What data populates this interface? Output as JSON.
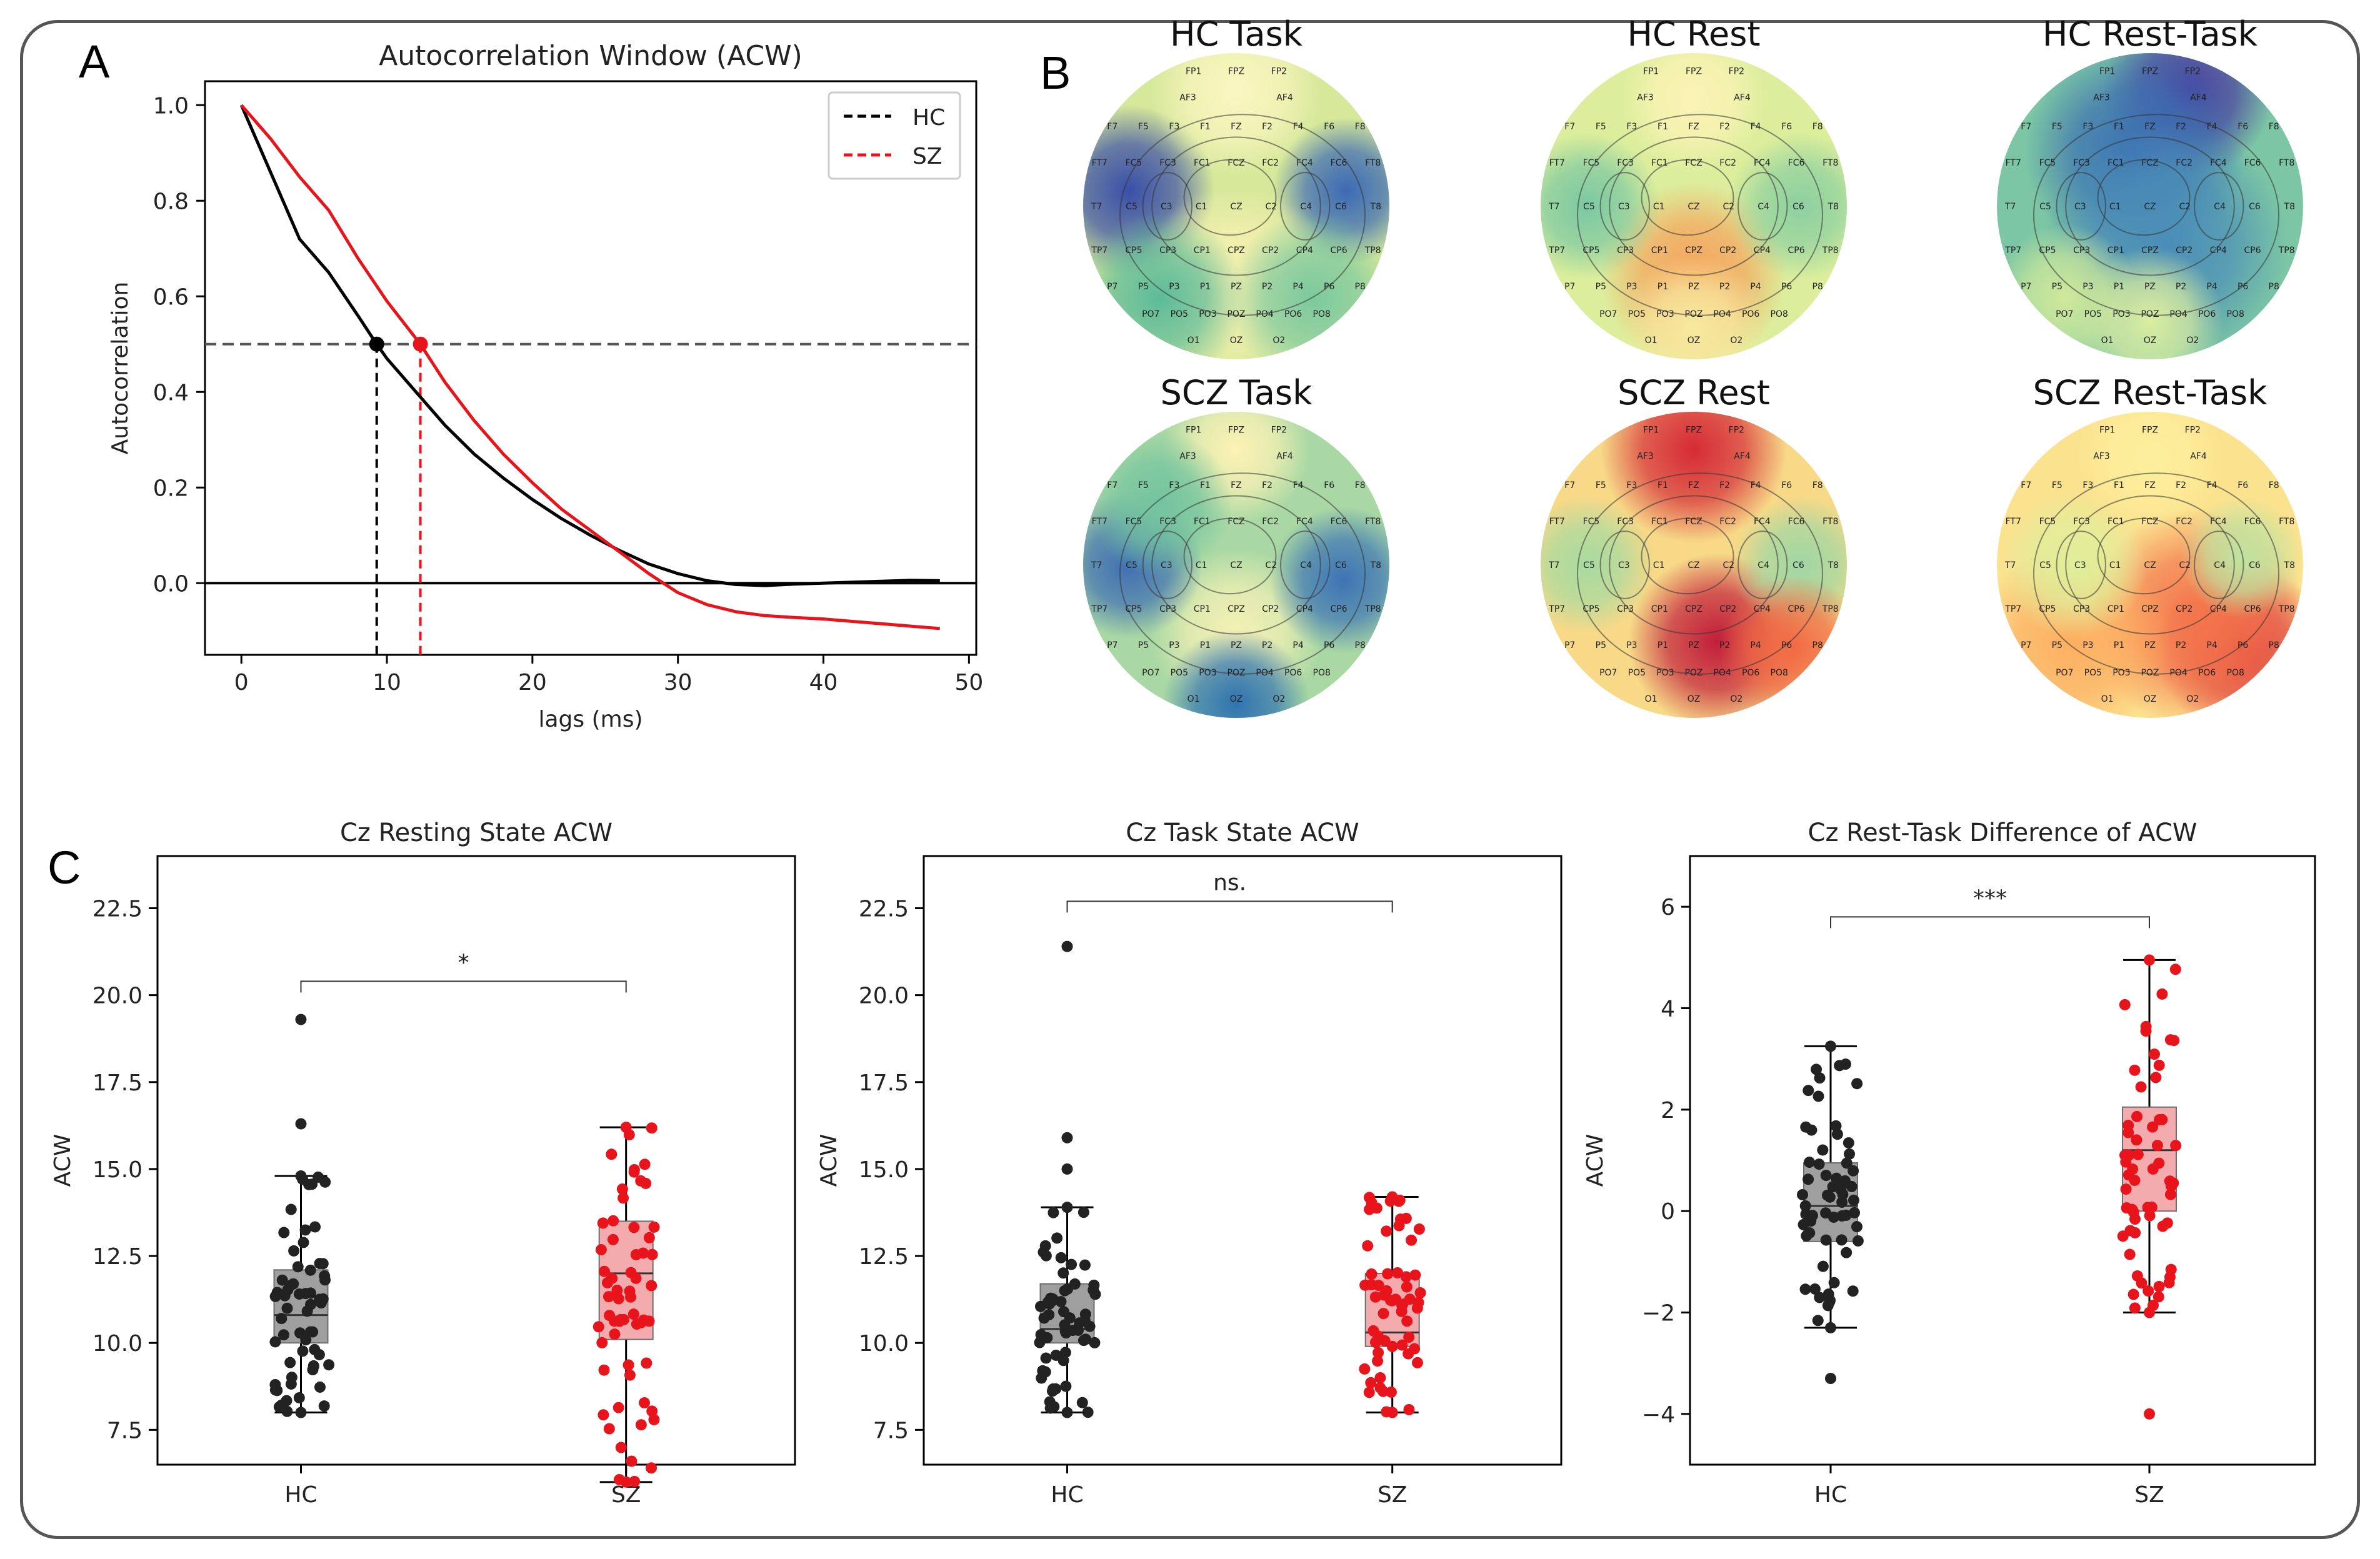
{
  "panel_labels": {
    "a": "A",
    "b": "B",
    "c": "C"
  },
  "colors": {
    "hc": "#000000",
    "sz": "#e8141c",
    "hc_box": "#9a9a9a",
    "sz_box": "#f4a7a9"
  },
  "chart_data": [
    {
      "id": "acw",
      "type": "line",
      "title": "Autocorrelation Window (ACW)",
      "xlabel": "lags (ms)",
      "ylabel": "Autocorrelation",
      "xlim": [
        -2.5,
        50.5
      ],
      "ylim": [
        -0.15,
        1.05
      ],
      "xticks": [
        "0",
        "10",
        "20",
        "30",
        "40",
        "50"
      ],
      "yticks": [
        "0.0",
        "0.2",
        "0.4",
        "0.6",
        "0.8",
        "1.0"
      ],
      "threshold": 0.5,
      "legend": [
        "HC",
        "SZ"
      ],
      "series": [
        {
          "name": "HC",
          "x": [
            0,
            2,
            4,
            6,
            8,
            9.3,
            10,
            12,
            14,
            16,
            18,
            20,
            22,
            24,
            26,
            28,
            30,
            32,
            34,
            36,
            38,
            40,
            42,
            44,
            46,
            48
          ],
          "y": [
            1.0,
            0.86,
            0.72,
            0.65,
            0.56,
            0.5,
            0.47,
            0.4,
            0.33,
            0.27,
            0.22,
            0.175,
            0.135,
            0.1,
            0.068,
            0.04,
            0.02,
            0.005,
            -0.003,
            -0.005,
            -0.002,
            0.0,
            0.002,
            0.004,
            0.006,
            0.005
          ]
        },
        {
          "name": "SZ",
          "x": [
            0,
            2,
            4,
            6,
            8,
            10,
            12.3,
            14,
            16,
            18,
            20,
            22,
            24,
            26,
            28,
            30,
            32,
            34,
            36,
            38,
            40,
            42,
            44,
            46,
            48
          ],
          "y": [
            1.0,
            0.93,
            0.85,
            0.78,
            0.68,
            0.59,
            0.5,
            0.42,
            0.34,
            0.27,
            0.21,
            0.155,
            0.11,
            0.065,
            0.02,
            -0.02,
            -0.045,
            -0.06,
            -0.068,
            -0.072,
            -0.075,
            -0.08,
            -0.085,
            -0.09,
            -0.095
          ]
        }
      ],
      "markers": [
        {
          "name": "HC",
          "x": 9.3,
          "y": 0.5
        },
        {
          "name": "SZ",
          "x": 12.3,
          "y": 0.5
        }
      ]
    },
    {
      "id": "cz_rest",
      "type": "box",
      "title": "Cz Resting State ACW",
      "ylabel": "ACW",
      "categories": [
        "HC",
        "SZ"
      ],
      "ylim": [
        6.5,
        24.0
      ],
      "yticks": [
        "7.5",
        "10.0",
        "12.5",
        "15.0",
        "17.5",
        "20.0",
        "22.5"
      ],
      "significance": "*",
      "bracket_y": 20.4,
      "boxes": [
        {
          "name": "HC",
          "q1": 10.0,
          "median": 10.8,
          "q3": 12.1,
          "whislo": 8.0,
          "whishi": 14.8,
          "outliers": [
            16.3,
            19.3
          ]
        },
        {
          "name": "SZ",
          "q1": 10.1,
          "median": 12.0,
          "q3": 13.5,
          "whislo": 6.0,
          "whishi": 16.2,
          "outliers": []
        }
      ]
    },
    {
      "id": "cz_task",
      "type": "box",
      "title": "Cz Task State ACW",
      "ylabel": "ACW",
      "categories": [
        "HC",
        "SZ"
      ],
      "ylim": [
        6.5,
        24.0
      ],
      "yticks": [
        "7.5",
        "10.0",
        "12.5",
        "15.0",
        "17.5",
        "20.0",
        "22.5"
      ],
      "significance": "ns.",
      "bracket_y": 22.7,
      "boxes": [
        {
          "name": "HC",
          "q1": 10.0,
          "median": 10.4,
          "q3": 11.7,
          "whislo": 8.0,
          "whishi": 13.9,
          "outliers": [
            15.0,
            15.9,
            21.4
          ]
        },
        {
          "name": "SZ",
          "q1": 9.9,
          "median": 10.3,
          "q3": 12.0,
          "whislo": 8.0,
          "whishi": 14.2,
          "outliers": []
        }
      ]
    },
    {
      "id": "cz_diff",
      "type": "box",
      "title": "Cz Rest-Task Difference of ACW",
      "ylabel": "ACW",
      "categories": [
        "HC",
        "SZ"
      ],
      "ylim": [
        -5.0,
        7.0
      ],
      "yticks": [
        "−4",
        "−2",
        "0",
        "2",
        "4",
        "6"
      ],
      "significance": "***",
      "bracket_y": 5.8,
      "boxes": [
        {
          "name": "HC",
          "q1": -0.6,
          "median": 0.1,
          "q3": 0.95,
          "whislo": -2.3,
          "whishi": 3.25,
          "outliers": [
            -3.3
          ]
        },
        {
          "name": "SZ",
          "q1": 0.0,
          "median": 1.2,
          "q3": 2.05,
          "whislo": -2.0,
          "whishi": 4.95,
          "outliers": [
            -4.0
          ]
        }
      ]
    }
  ],
  "topomaps": [
    {
      "title": "HC Task",
      "scheme": "hc_task"
    },
    {
      "title": "HC Rest",
      "scheme": "hc_rest"
    },
    {
      "title": "HC Rest-Task",
      "scheme": "hc_diff"
    },
    {
      "title": "SCZ Task",
      "scheme": "scz_task"
    },
    {
      "title": "SCZ Rest",
      "scheme": "scz_rest"
    },
    {
      "title": "SCZ Rest-Task",
      "scheme": "scz_diff"
    }
  ],
  "electrodes": [
    "FP1",
    "FPZ",
    "FP2",
    "AF3",
    "AF4",
    "F7",
    "F5",
    "F3",
    "F1",
    "FZ",
    "F2",
    "F4",
    "F6",
    "F8",
    "FT7",
    "FC5",
    "FC3",
    "FC1",
    "FCZ",
    "FC2",
    "FC4",
    "FC6",
    "FT8",
    "T7",
    "C5",
    "C3",
    "C1",
    "CZ",
    "C2",
    "C4",
    "C6",
    "T8",
    "TP7",
    "CP5",
    "CP3",
    "CP1",
    "CPZ",
    "CP2",
    "CP4",
    "CP6",
    "TP8",
    "P7",
    "P5",
    "P3",
    "P1",
    "PZ",
    "P2",
    "P4",
    "P6",
    "P8",
    "PO7",
    "PO5",
    "PO3",
    "POZ",
    "PO4",
    "PO6",
    "PO8",
    "O1",
    "OZ",
    "O2"
  ]
}
